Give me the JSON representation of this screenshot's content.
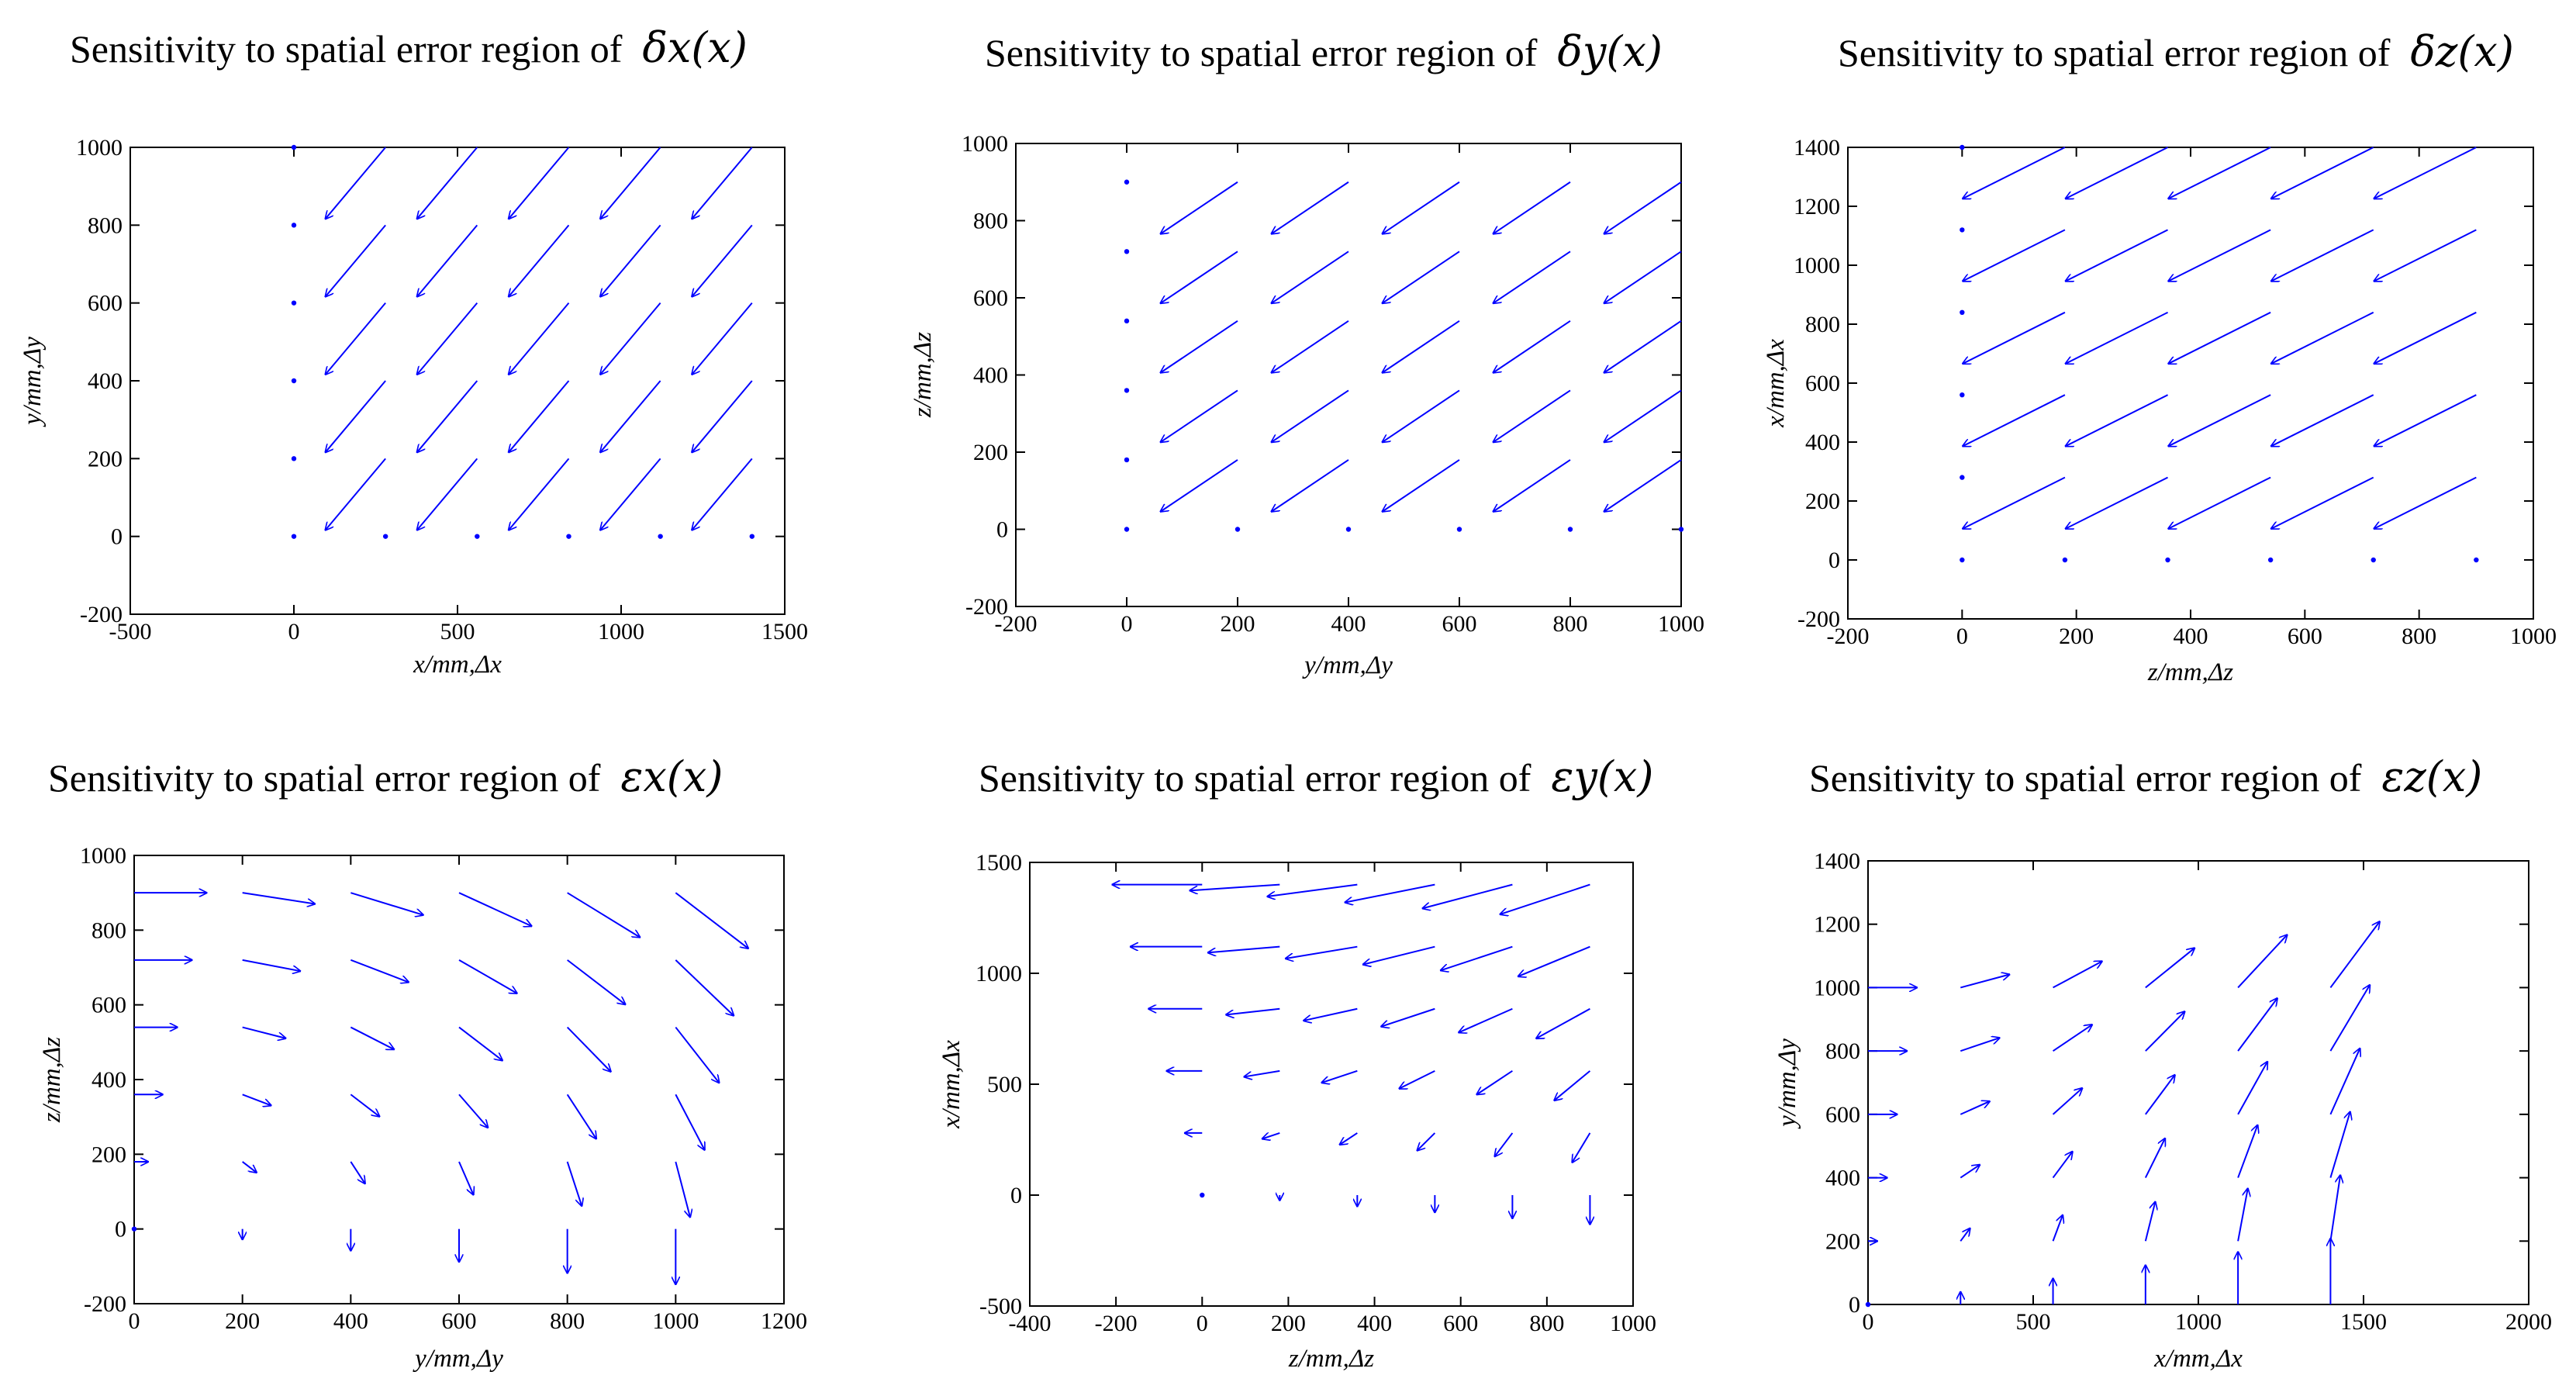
{
  "colors": {
    "arrow": "#0000ff",
    "axes": "#000000"
  },
  "chart_data": [
    {
      "type": "quiver",
      "title": "Sensitivity to spatial error region of",
      "title_symbol": "δx(x)",
      "xlabel": "x/mm,Δx",
      "ylabel": "y/mm,Δy",
      "xlim": [
        -500,
        1500
      ],
      "ylim": [
        -200,
        1000
      ],
      "xticks": [
        -500,
        0,
        500,
        1000,
        1500
      ],
      "yticks": [
        -200,
        0,
        200,
        400,
        600,
        800,
        1000
      ],
      "x_nodes": [
        0,
        280,
        560,
        840,
        1120,
        1400
      ],
      "y_nodes": [
        0,
        200,
        400,
        600,
        800,
        1000
      ],
      "arrow_skip": {
        "row0": true,
        "col0": true
      },
      "arrow_vector": [
        -185,
        -185
      ],
      "arrow_scale_by": "none"
    },
    {
      "type": "quiver",
      "title": "Sensitivity to spatial error region of",
      "title_symbol": "δy(x)",
      "xlabel": "y/mm,Δy",
      "ylabel": "z/mm,Δz",
      "xlim": [
        -200,
        1000
      ],
      "ylim": [
        -200,
        1000
      ],
      "xticks": [
        -200,
        0,
        200,
        400,
        600,
        800,
        1000
      ],
      "yticks": [
        -200,
        0,
        200,
        400,
        600,
        800,
        1000
      ],
      "x_nodes": [
        0,
        200,
        400,
        600,
        800,
        1000
      ],
      "y_nodes": [
        0,
        180,
        360,
        540,
        720,
        900
      ],
      "arrow_skip": {
        "row0": true,
        "col0": true
      },
      "arrow_vector": [
        -140,
        -135
      ],
      "arrow_scale_by": "none"
    },
    {
      "type": "quiver",
      "title": "Sensitivity to spatial error region of",
      "title_symbol": "δz(x)",
      "xlabel": "z/mm,Δz",
      "ylabel": "x/mm,Δx",
      "xlim": [
        -200,
        1000
      ],
      "ylim": [
        -200,
        1400
      ],
      "xticks": [
        -200,
        0,
        200,
        400,
        600,
        800,
        1000
      ],
      "yticks": [
        -200,
        0,
        200,
        400,
        600,
        800,
        1000,
        1200,
        1400
      ],
      "x_nodes": [
        0,
        180,
        360,
        540,
        720,
        900
      ],
      "y_nodes": [
        0,
        280,
        560,
        840,
        1120,
        1400
      ],
      "arrow_skip": {
        "row0": true,
        "col0": true
      },
      "arrow_vector": [
        -180,
        -175
      ],
      "arrow_scale_by": "none"
    },
    {
      "type": "quiver",
      "title": "Sensitivity to spatial error region of",
      "title_symbol": "εx(x)",
      "xlabel": "y/mm,Δy",
      "ylabel": "z/mm,Δz",
      "xlim": [
        0,
        1200
      ],
      "ylim": [
        -200,
        1000
      ],
      "xticks": [
        0,
        200,
        400,
        600,
        800,
        1000,
        1200
      ],
      "yticks": [
        -200,
        0,
        200,
        400,
        600,
        800,
        1000
      ],
      "x_nodes": [
        0,
        200,
        400,
        600,
        800,
        1000
      ],
      "y_nodes": [
        0,
        180,
        360,
        540,
        720,
        900
      ],
      "field": "rotation_about_x",
      "field_scale": 0.15,
      "arrow_scale_by": "position"
    },
    {
      "type": "quiver",
      "title": "Sensitivity to spatial error region of",
      "title_symbol": "εy(x)",
      "xlabel": "z/mm,Δz",
      "ylabel": "x/mm,Δx",
      "xlim": [
        -400,
        1000
      ],
      "ylim": [
        -500,
        1500
      ],
      "xticks": [
        -400,
        -200,
        0,
        200,
        400,
        600,
        800,
        1000
      ],
      "yticks": [
        -500,
        0,
        500,
        1000,
        1500
      ],
      "x_nodes": [
        0,
        180,
        360,
        540,
        720,
        900
      ],
      "y_nodes": [
        0,
        280,
        560,
        840,
        1120,
        1400
      ],
      "field": "rotation_about_y",
      "field_scale": 0.15,
      "arrow_scale_by": "position"
    },
    {
      "type": "quiver",
      "title": "Sensitivity to spatial error region of",
      "title_symbol": "εz(x)",
      "xlabel": "x/mm,Δx",
      "ylabel": "y/mm,Δy",
      "xlim": [
        0,
        2000
      ],
      "ylim": [
        0,
        1400
      ],
      "xticks": [
        0,
        500,
        1000,
        1500,
        2000
      ],
      "yticks": [
        0,
        200,
        400,
        600,
        800,
        1000,
        1200,
        1400
      ],
      "x_nodes": [
        0,
        280,
        560,
        840,
        1120,
        1400
      ],
      "y_nodes": [
        0,
        200,
        400,
        600,
        800,
        1000
      ],
      "field": "rotation_about_z",
      "field_scale": 0.15,
      "arrow_scale_by": "position"
    }
  ]
}
